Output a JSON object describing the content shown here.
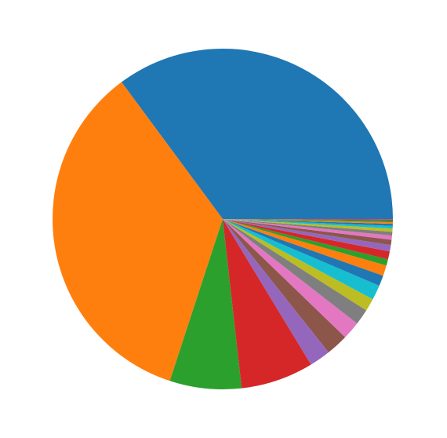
{
  "chart_data": {
    "type": "pie",
    "start_angle": 0,
    "direction": "counterclockwise",
    "values": [
      35.1,
      34.8,
      6.8,
      6.9,
      2.0,
      2.1,
      1.7,
      1.5,
      1.2,
      1.4,
      1.0,
      1.0,
      0.6,
      0.75,
      0.6,
      0.5,
      0.4,
      0.35,
      0.3,
      0.25,
      0.2,
      0.15,
      0.15,
      0.1,
      0.05
    ],
    "colors": [
      "#1f77b4",
      "#ff7f0e",
      "#2ca02c",
      "#d62728",
      "#9467bd",
      "#8c564b",
      "#e377c2",
      "#7f7f7f",
      "#bcbd22",
      "#17becf",
      "#1f77b4",
      "#ff7f0e",
      "#2ca02c",
      "#d62728",
      "#9467bd",
      "#8c564b",
      "#e377c2",
      "#7f7f7f",
      "#bcbd22",
      "#17becf",
      "#1f77b4",
      "#ff7f0e",
      "#2ca02c",
      "#d62728",
      "#9467bd"
    ]
  }
}
